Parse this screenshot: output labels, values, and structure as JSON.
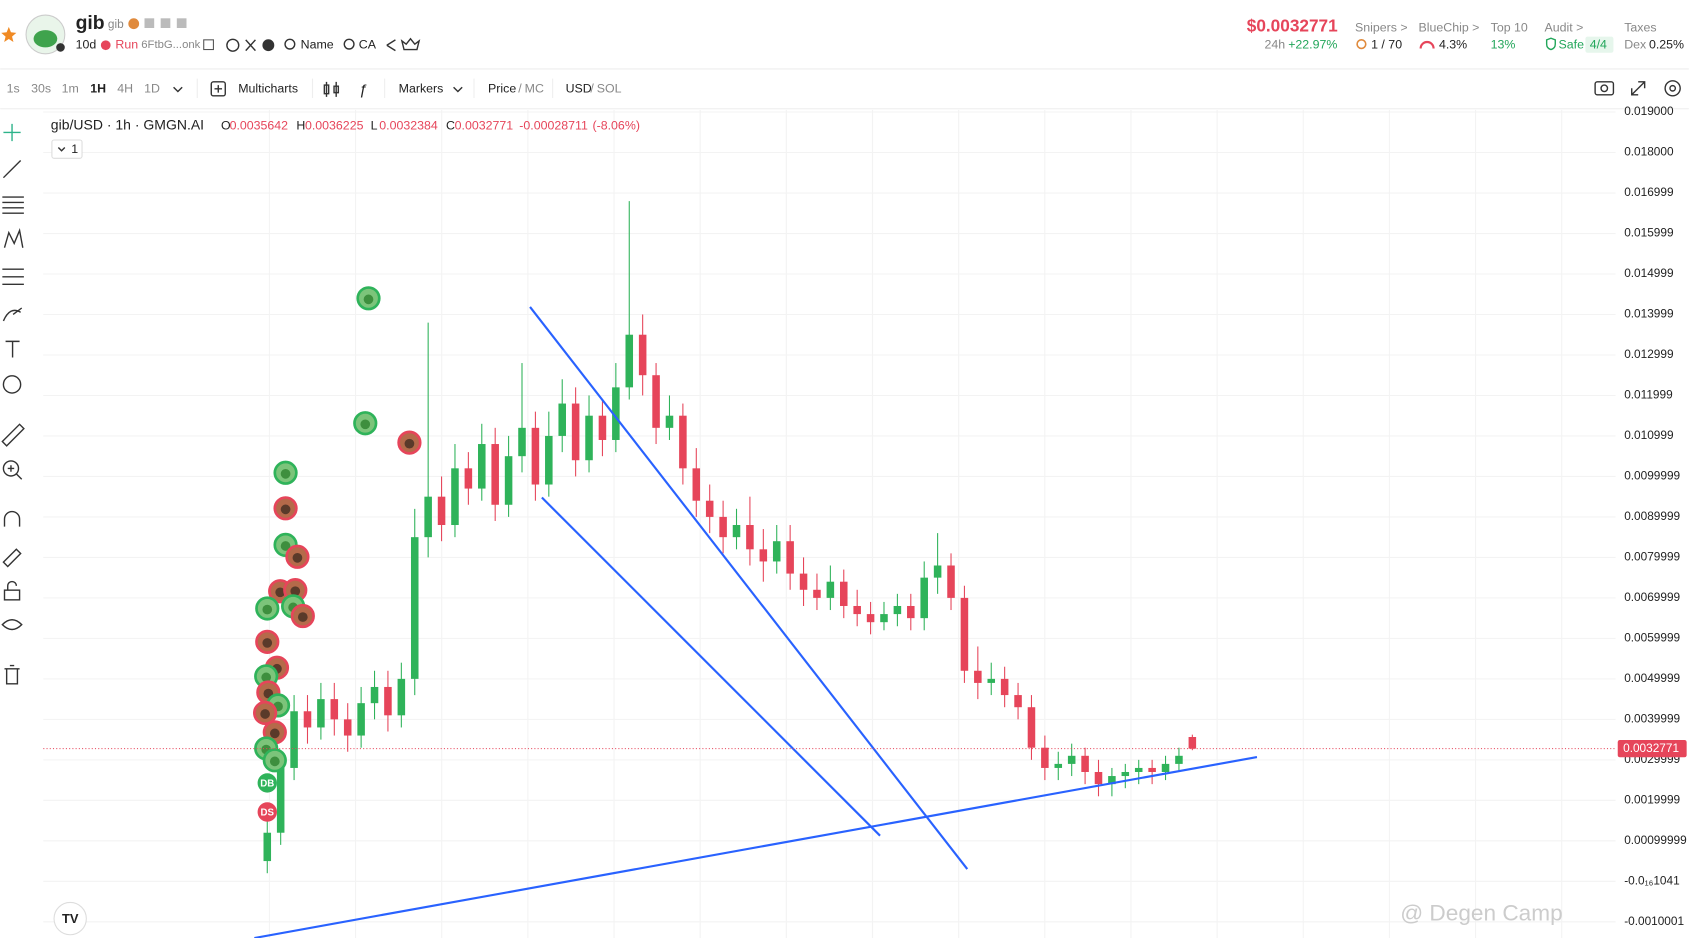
{
  "header": {
    "name": "gib",
    "symbol": "gib",
    "age": "10d",
    "run": "Run",
    "address": "6FtbG...onk",
    "name_search": "Name",
    "ca": "CA",
    "price": "$0.0032771",
    "change_label": "24h",
    "change": "+22.97%",
    "stats": [
      {
        "label": "Snipers >",
        "value": "1 / 70"
      },
      {
        "label": "BlueChip >",
        "value": "4.3%"
      },
      {
        "label": "Top 10",
        "value": "13%"
      },
      {
        "label": "Audit >",
        "value": "Safe",
        "extra": "4/4"
      },
      {
        "label": "Taxes",
        "value": "Dex",
        "extra": "0.25%"
      }
    ]
  },
  "toolbar": {
    "intervals": [
      "1s",
      "30s",
      "1m",
      "1H",
      "4H",
      "1D"
    ],
    "multicharts": "Multicharts",
    "markers": "Markers",
    "price": "Price",
    "separator": "/",
    "mc": "MC",
    "usd": "USD",
    "sol": "SOL"
  },
  "chart_data": {
    "type": "candlestick",
    "title": "gib/USD · 1h · GMGN.AI",
    "legend_keys": [
      "O",
      "H",
      "L",
      "C"
    ],
    "change": -0.00028711,
    "change_pct": "(-8.06%)",
    "pane": "1",
    "open": [
      0.0005,
      0.0012,
      0.0028,
      0.0042,
      0.0038,
      0.0045,
      0.004,
      0.0036,
      0.0044,
      0.0048,
      0.0041,
      0.005,
      0.0085,
      0.0095,
      0.0088,
      0.0102,
      0.0097,
      0.0108,
      0.0093,
      0.0105,
      0.0112,
      0.0098,
      0.011,
      0.0118,
      0.0104,
      0.0115,
      0.0109,
      0.0122,
      0.0135,
      0.0125,
      0.0112,
      0.0115,
      0.0102,
      0.0094,
      0.009,
      0.0085,
      0.0088,
      0.0082,
      0.0079,
      0.0084,
      0.0076,
      0.0072,
      0.007,
      0.0074,
      0.0068,
      0.0066,
      0.0064,
      0.0066,
      0.0068,
      0.0065,
      0.0075,
      0.0078,
      0.007,
      0.0052,
      0.0049,
      0.005,
      0.0046,
      0.0043,
      0.0033,
      0.0028,
      0.0029,
      0.0031,
      0.0027,
      0.0024,
      0.0026,
      0.0027,
      0.0028,
      0.0027,
      0.0029,
      0.0035642
    ],
    "high": [
      0.0016,
      0.0032,
      0.0046,
      0.0046,
      0.0049,
      0.0049,
      0.0044,
      0.0048,
      0.0052,
      0.0052,
      0.0054,
      0.0092,
      0.0138,
      0.01,
      0.0108,
      0.0106,
      0.0113,
      0.0112,
      0.011,
      0.0128,
      0.0116,
      0.0116,
      0.0124,
      0.0122,
      0.012,
      0.0119,
      0.0128,
      0.0168,
      0.014,
      0.0128,
      0.012,
      0.0118,
      0.0107,
      0.0098,
      0.0094,
      0.0092,
      0.0095,
      0.0087,
      0.0088,
      0.0088,
      0.008,
      0.0076,
      0.0078,
      0.0077,
      0.0072,
      0.0069,
      0.0069,
      0.0071,
      0.0071,
      0.0079,
      0.0086,
      0.0081,
      0.0073,
      0.0058,
      0.0054,
      0.0053,
      0.0049,
      0.0046,
      0.0036,
      0.0032,
      0.0034,
      0.0033,
      0.003,
      0.0028,
      0.0029,
      0.003,
      0.003,
      0.0031,
      0.0033,
      0.0036225
    ],
    "low": [
      0.0002,
      0.0009,
      0.0025,
      0.0034,
      0.0035,
      0.0036,
      0.0032,
      0.0033,
      0.004,
      0.0037,
      0.0038,
      0.0046,
      0.008,
      0.0084,
      0.0085,
      0.0093,
      0.0094,
      0.0089,
      0.009,
      0.0101,
      0.0094,
      0.0095,
      0.0106,
      0.01,
      0.0101,
      0.0105,
      0.0106,
      0.0119,
      0.012,
      0.0108,
      0.0109,
      0.0098,
      0.009,
      0.0086,
      0.0081,
      0.0082,
      0.0078,
      0.0074,
      0.0076,
      0.0072,
      0.0068,
      0.0067,
      0.0067,
      0.0065,
      0.0063,
      0.0061,
      0.0062,
      0.0063,
      0.0062,
      0.0062,
      0.0071,
      0.0067,
      0.0049,
      0.0045,
      0.0046,
      0.0043,
      0.004,
      0.003,
      0.0025,
      0.0025,
      0.0026,
      0.0024,
      0.0021,
      0.0021,
      0.0023,
      0.0024,
      0.0024,
      0.0025,
      0.0027,
      0.0032384
    ],
    "close": [
      0.0012,
      0.0028,
      0.0042,
      0.0038,
      0.0045,
      0.004,
      0.0036,
      0.0044,
      0.0048,
      0.0041,
      0.005,
      0.0085,
      0.0095,
      0.0088,
      0.0102,
      0.0097,
      0.0108,
      0.0093,
      0.0105,
      0.0112,
      0.0098,
      0.011,
      0.0118,
      0.0104,
      0.0115,
      0.0109,
      0.0122,
      0.0135,
      0.0125,
      0.0112,
      0.0115,
      0.0102,
      0.0094,
      0.009,
      0.0085,
      0.0088,
      0.0082,
      0.0079,
      0.0084,
      0.0076,
      0.0072,
      0.007,
      0.0074,
      0.0068,
      0.0066,
      0.0064,
      0.0066,
      0.0068,
      0.0065,
      0.0075,
      0.0078,
      0.007,
      0.0052,
      0.0049,
      0.005,
      0.0046,
      0.0043,
      0.0033,
      0.0028,
      0.0029,
      0.0031,
      0.0027,
      0.0024,
      0.0026,
      0.0027,
      0.0028,
      0.0027,
      0.0029,
      0.0031,
      0.0032771
    ],
    "up_color": "#2fb35a",
    "down_color": "#e6455a",
    "ylim": [
      -0.0014,
      0.0192
    ],
    "yticks": [
      {
        "value": 0.019,
        "label": "0.019000"
      },
      {
        "value": 0.018,
        "label": "0.018000"
      },
      0.016999,
      0.015999,
      0.014999,
      0.013999,
      0.012999,
      0.011999,
      0.010999,
      0.0099999,
      0.0089999,
      0.0079999,
      0.0069999,
      0.0059999,
      0.0049999,
      0.0039999,
      0.0029999,
      0.0019999,
      0.00099999,
      {
        "value": 0,
        "label": "-0.0₁₆1041"
      },
      -0.0010001
    ],
    "grid": true,
    "last_price": 0.0032771,
    "markers": [
      "DB",
      "DS"
    ],
    "watermark": "@ Degen Camp"
  }
}
